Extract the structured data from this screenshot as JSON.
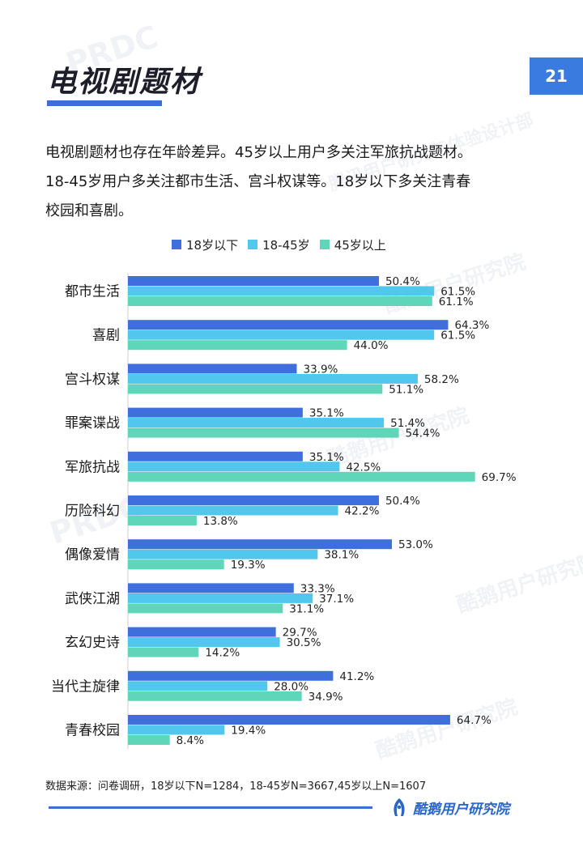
{
  "page": {
    "title": "电视剧题材",
    "page_number": "21",
    "intro_lines": [
      "电视剧题材也存在年龄差异。45岁以上用户多关注军旅抗战题材。",
      "18-45岁用户多关注都市生活、宫斗权谋等。18岁以下多关注青春",
      "校园和喜剧。"
    ],
    "source": "数据来源：问卷调研，18岁以下N=1284，18-45岁N=3667,45岁以上N=1607",
    "brand": "酷鹅用户研究院",
    "watermarks": [
      "PRDC",
      "腾讯用户研究与体验设计部",
      "酷鹅用户研究院"
    ]
  },
  "colors": {
    "series": [
      "#3e6fdc",
      "#52c7ee",
      "#5fd6b9"
    ],
    "accent": "#3a7be0"
  },
  "chart_data": {
    "type": "bar",
    "orientation": "horizontal",
    "categories": [
      "都市生活",
      "喜剧",
      "宫斗权谋",
      "罪案谍战",
      "军旅抗战",
      "历险科幻",
      "偶像爱情",
      "武侠江湖",
      "玄幻史诗",
      "当代主旋律",
      "青春校园"
    ],
    "series": [
      {
        "name": "18岁以下",
        "values": [
          50.4,
          64.3,
          33.9,
          35.1,
          35.1,
          50.4,
          53.0,
          33.3,
          29.7,
          41.2,
          64.7
        ]
      },
      {
        "name": "18-45岁",
        "values": [
          61.5,
          61.5,
          58.2,
          51.4,
          42.5,
          42.2,
          38.1,
          37.1,
          30.5,
          28.0,
          19.4
        ]
      },
      {
        "name": "45岁以上",
        "values": [
          61.1,
          44.0,
          51.1,
          54.4,
          69.7,
          13.8,
          19.3,
          31.1,
          14.2,
          34.9,
          8.4
        ]
      }
    ],
    "value_suffix": "%",
    "xlim": [
      0,
      70
    ],
    "legend_position": "top",
    "grid": false
  }
}
